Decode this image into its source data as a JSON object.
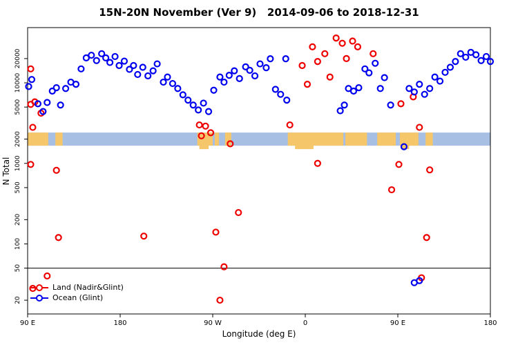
{
  "title": "15N-20N November (Ver 9)   2014-09-06 to 2018-12-31",
  "chart_data": {
    "type": "scatter",
    "title": "15N-20N November (Ver 9)   2014-09-06 to 2018-12-31",
    "xlabel": "Longitude (deg E)",
    "ylabel": "N Total",
    "y_scale": "log",
    "grid": false,
    "x_range": [
      90,
      540
    ],
    "ylim": [
      13.5,
      48500
    ],
    "x_ticks": [
      {
        "lon": 90,
        "label": "90 E"
      },
      {
        "lon": 180,
        "label": "180"
      },
      {
        "lon": 270,
        "label": "90 W"
      },
      {
        "lon": 360,
        "label": "0"
      },
      {
        "lon": 450,
        "label": "90 E"
      },
      {
        "lon": 540,
        "label": "180"
      }
    ],
    "y_ticks": [
      20,
      50,
      100,
      200,
      500,
      1000,
      2000,
      5000,
      10000,
      20000
    ],
    "reference_line_y": 50,
    "map_band": {
      "center_value": 2000,
      "ocean_color": "#a6bfe2",
      "land_color": "#f5c76a",
      "land_segments": [
        [
          90,
          110
        ],
        [
          117,
          124
        ],
        [
          255,
          270
        ],
        [
          272,
          276
        ],
        [
          282,
          288
        ],
        [
          343,
          397
        ],
        [
          399,
          420
        ],
        [
          430,
          448
        ],
        [
          452,
          470
        ],
        [
          477,
          484
        ]
      ],
      "dangles": [
        [
          257,
          266
        ],
        [
          350,
          368
        ],
        [
          453,
          461
        ]
      ]
    },
    "legend_position": "bottom-left",
    "series": [
      {
        "name": "Land (Nadir&Glint)",
        "color": "#ee0000",
        "points": [
          [
            93,
            14900
          ],
          [
            93,
            5400
          ],
          [
            97,
            5800
          ],
          [
            95,
            2800
          ],
          [
            103,
            4200
          ],
          [
            93,
            970
          ],
          [
            118,
            820
          ],
          [
            120,
            120
          ],
          [
            109,
            40
          ],
          [
            95,
            28
          ],
          [
            203,
            125
          ],
          [
            257,
            3000
          ],
          [
            263,
            2900
          ],
          [
            259,
            2200
          ],
          [
            268,
            2400
          ],
          [
            287,
            1750
          ],
          [
            273,
            140
          ],
          [
            295,
            245
          ],
          [
            281,
            52
          ],
          [
            277,
            20
          ],
          [
            345,
            3000
          ],
          [
            357,
            16400
          ],
          [
            362,
            9600
          ],
          [
            367,
            28000
          ],
          [
            372,
            18400
          ],
          [
            379,
            23000
          ],
          [
            384,
            11800
          ],
          [
            390,
            36000
          ],
          [
            396,
            31000
          ],
          [
            400,
            20000
          ],
          [
            406,
            33000
          ],
          [
            411,
            28000
          ],
          [
            426,
            23000
          ],
          [
            372,
            1000
          ],
          [
            444,
            470
          ],
          [
            451,
            970
          ],
          [
            453,
            5500
          ],
          [
            465,
            6700
          ],
          [
            471,
            2800
          ],
          [
            481,
            830
          ],
          [
            478,
            120
          ],
          [
            473,
            38
          ]
        ]
      },
      {
        "name": "Ocean (Glint)",
        "color": "#0000ee",
        "points": [
          [
            91,
            9000
          ],
          [
            94,
            11000
          ],
          [
            100,
            5500
          ],
          [
            105,
            4400
          ],
          [
            109,
            5700
          ],
          [
            114,
            7900
          ],
          [
            118,
            8700
          ],
          [
            122,
            5300
          ],
          [
            127,
            8500
          ],
          [
            132,
            10200
          ],
          [
            137,
            9600
          ],
          [
            142,
            14900
          ],
          [
            147,
            20400
          ],
          [
            152,
            22000
          ],
          [
            157,
            18900
          ],
          [
            162,
            23000
          ],
          [
            166,
            20400
          ],
          [
            170,
            17900
          ],
          [
            175,
            21200
          ],
          [
            179,
            16400
          ],
          [
            184,
            18600
          ],
          [
            189,
            14700
          ],
          [
            193,
            16400
          ],
          [
            197,
            12700
          ],
          [
            202,
            15600
          ],
          [
            207,
            12200
          ],
          [
            212,
            14100
          ],
          [
            216,
            17200
          ],
          [
            222,
            10200
          ],
          [
            226,
            11800
          ],
          [
            231,
            9800
          ],
          [
            236,
            8500
          ],
          [
            241,
            7100
          ],
          [
            246,
            6100
          ],
          [
            251,
            5300
          ],
          [
            256,
            4600
          ],
          [
            261,
            5600
          ],
          [
            266,
            4400
          ],
          [
            271,
            8100
          ],
          [
            277,
            11800
          ],
          [
            281,
            10200
          ],
          [
            286,
            12400
          ],
          [
            291,
            14100
          ],
          [
            296,
            11300
          ],
          [
            302,
            15800
          ],
          [
            306,
            14300
          ],
          [
            311,
            12200
          ],
          [
            316,
            17200
          ],
          [
            322,
            15400
          ],
          [
            326,
            19900
          ],
          [
            331,
            8300
          ],
          [
            336,
            7200
          ],
          [
            341,
            19900
          ],
          [
            342,
            6100
          ],
          [
            394,
            4500
          ],
          [
            398,
            5300
          ],
          [
            402,
            8500
          ],
          [
            407,
            7900
          ],
          [
            412,
            8700
          ],
          [
            418,
            14900
          ],
          [
            422,
            13300
          ],
          [
            428,
            17500
          ],
          [
            433,
            8500
          ],
          [
            437,
            11600
          ],
          [
            443,
            5300
          ],
          [
            456,
            1610
          ],
          [
            461,
            8500
          ],
          [
            466,
            7700
          ],
          [
            471,
            9600
          ],
          [
            476,
            7200
          ],
          [
            481,
            8500
          ],
          [
            486,
            11800
          ],
          [
            491,
            10500
          ],
          [
            496,
            13500
          ],
          [
            501,
            15600
          ],
          [
            506,
            18400
          ],
          [
            511,
            23000
          ],
          [
            516,
            20800
          ],
          [
            521,
            23900
          ],
          [
            526,
            22300
          ],
          [
            531,
            18900
          ],
          [
            536,
            21200
          ],
          [
            540,
            18400
          ],
          [
            466,
            33
          ],
          [
            471,
            35
          ]
        ]
      }
    ]
  }
}
